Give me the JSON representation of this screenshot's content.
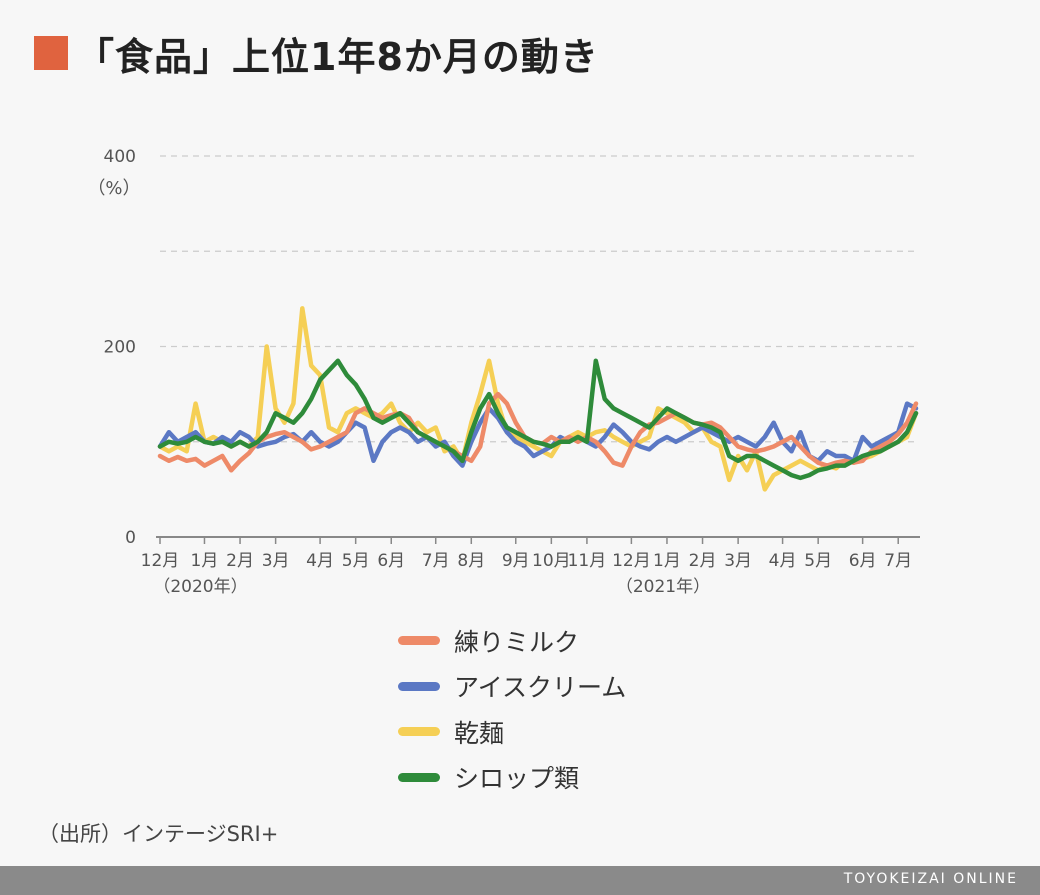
{
  "title": "「食品」上位1年8か月の動き",
  "colors": {
    "title_square": "#e0633f",
    "grid": "#cccccc",
    "axis": "#888888",
    "footer_bg": "#8a8a8a"
  },
  "source": "（出所）インテージSRI+",
  "footer": {
    "brand": "TOYOKEIZAI ONLINE"
  },
  "chart_data": {
    "type": "line",
    "title": "「食品」上位1年8か月の動き",
    "ylabel": "（%）",
    "ylim": [
      0,
      400
    ],
    "yticks": [
      0,
      200,
      400
    ],
    "grid": true,
    "legend_position": "bottom",
    "x_tick_labels": [
      {
        "label": "12月",
        "week": 0
      },
      {
        "label": "1月",
        "week": 5
      },
      {
        "label": "2月",
        "week": 9
      },
      {
        "label": "3月",
        "week": 13
      },
      {
        "label": "4月",
        "week": 18
      },
      {
        "label": "5月",
        "week": 22
      },
      {
        "label": "6月",
        "week": 26
      },
      {
        "label": "7月",
        "week": 31
      },
      {
        "label": "8月",
        "week": 35
      },
      {
        "label": "9月",
        "week": 40
      },
      {
        "label": "10月",
        "week": 44
      },
      {
        "label": "11月",
        "week": 48
      },
      {
        "label": "12月",
        "week": 53
      },
      {
        "label": "1月",
        "week": 57
      },
      {
        "label": "2月",
        "week": 61
      },
      {
        "label": "3月",
        "week": 65
      },
      {
        "label": "4月",
        "week": 70
      },
      {
        "label": "5月",
        "week": 74
      },
      {
        "label": "6月",
        "week": 79
      },
      {
        "label": "7月",
        "week": 83
      }
    ],
    "year_labels": [
      {
        "label": "（2020年）",
        "week": 5
      },
      {
        "label": "（2021年）",
        "week": 57
      }
    ],
    "series": [
      {
        "name": "練りミルク",
        "color": "#ee8a68",
        "values": [
          85,
          80,
          84,
          80,
          82,
          75,
          80,
          85,
          70,
          80,
          88,
          100,
          105,
          108,
          110,
          105,
          100,
          92,
          95,
          100,
          105,
          110,
          130,
          135,
          130,
          125,
          128,
          130,
          125,
          110,
          105,
          100,
          95,
          90,
          85,
          80,
          95,
          140,
          150,
          140,
          120,
          105,
          100,
          98,
          105,
          100,
          105,
          100,
          105,
          100,
          90,
          78,
          75,
          95,
          110,
          118,
          120,
          125,
          130,
          125,
          120,
          118,
          120,
          115,
          105,
          95,
          92,
          90,
          92,
          95,
          100,
          105,
          95,
          85,
          78,
          75,
          78,
          80,
          78,
          80,
          90,
          95,
          100,
          108,
          120,
          140
        ]
      },
      {
        "name": "アイスクリーム",
        "color": "#5b78c4",
        "values": [
          95,
          110,
          100,
          105,
          110,
          100,
          98,
          105,
          100,
          110,
          105,
          95,
          98,
          100,
          105,
          108,
          100,
          110,
          100,
          95,
          100,
          110,
          120,
          115,
          80,
          100,
          110,
          115,
          110,
          100,
          105,
          95,
          100,
          85,
          75,
          100,
          120,
          135,
          125,
          110,
          100,
          95,
          85,
          90,
          95,
          105,
          100,
          105,
          100,
          95,
          105,
          118,
          110,
          100,
          95,
          92,
          100,
          105,
          100,
          105,
          110,
          115,
          110,
          105,
          100,
          105,
          100,
          95,
          105,
          120,
          100,
          90,
          110,
          85,
          80,
          90,
          85,
          85,
          80,
          105,
          95,
          100,
          105,
          110,
          140,
          135
        ]
      },
      {
        "name": "乾麺",
        "color": "#f5cf55",
        "values": [
          95,
          90,
          95,
          90,
          140,
          100,
          105,
          100,
          95,
          100,
          95,
          105,
          200,
          135,
          120,
          140,
          240,
          180,
          170,
          115,
          110,
          130,
          135,
          130,
          125,
          130,
          140,
          120,
          110,
          120,
          110,
          115,
          90,
          95,
          80,
          120,
          150,
          185,
          140,
          110,
          105,
          100,
          95,
          90,
          85,
          100,
          105,
          110,
          105,
          110,
          112,
          105,
          100,
          95,
          100,
          105,
          135,
          130,
          125,
          120,
          110,
          115,
          100,
          95,
          60,
          85,
          70,
          90,
          50,
          65,
          70,
          75,
          80,
          75,
          70,
          75,
          72,
          80,
          78,
          82,
          85,
          90,
          95,
          100,
          105,
          130
        ]
      },
      {
        "name": "シロップ類",
        "color": "#2e8b3a",
        "values": [
          95,
          100,
          98,
          100,
          105,
          100,
          98,
          100,
          95,
          100,
          95,
          100,
          110,
          130,
          125,
          120,
          130,
          145,
          165,
          175,
          185,
          170,
          160,
          145,
          125,
          120,
          125,
          130,
          120,
          110,
          105,
          100,
          95,
          90,
          80,
          110,
          135,
          150,
          130,
          115,
          110,
          105,
          100,
          98,
          95,
          100,
          100,
          105,
          100,
          185,
          145,
          135,
          130,
          125,
          120,
          115,
          125,
          135,
          130,
          125,
          120,
          118,
          115,
          110,
          85,
          80,
          85,
          85,
          80,
          75,
          70,
          65,
          62,
          65,
          70,
          72,
          75,
          75,
          80,
          85,
          88,
          90,
          95,
          100,
          110,
          130
        ]
      }
    ]
  }
}
